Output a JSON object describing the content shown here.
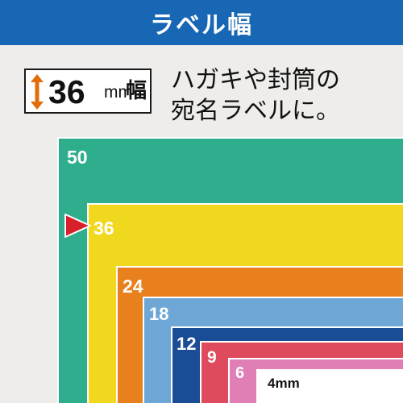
{
  "header": {
    "title": "ラベル幅"
  },
  "badge": {
    "number": "36",
    "unit": "mm",
    "kanji": "幅"
  },
  "description": {
    "line1": "ハガキや封筒の",
    "line2": "宛名ラベルに。"
  },
  "colors": {
    "header": "#1867b4",
    "tape_50": "#2fae8d",
    "tape_36": "#f0d81f",
    "tape_24": "#e8801d",
    "tape_18": "#6ea7d6",
    "tape_12": "#1b4d97",
    "tape_9": "#de4b5c",
    "tape_6": "#e07fb5",
    "tape_4": "#ffffff",
    "pointer": "#d8202a"
  },
  "tapes": [
    {
      "label": "50",
      "width_mm": 50
    },
    {
      "label": "36",
      "width_mm": 36
    },
    {
      "label": "24",
      "width_mm": 24
    },
    {
      "label": "18",
      "width_mm": 18
    },
    {
      "label": "12",
      "width_mm": 12
    },
    {
      "label": "9",
      "width_mm": 9
    },
    {
      "label": "6",
      "width_mm": 6
    },
    {
      "label": "4mm",
      "width_mm": 4
    }
  ],
  "pointer_icon": "red-triangle-pointer"
}
